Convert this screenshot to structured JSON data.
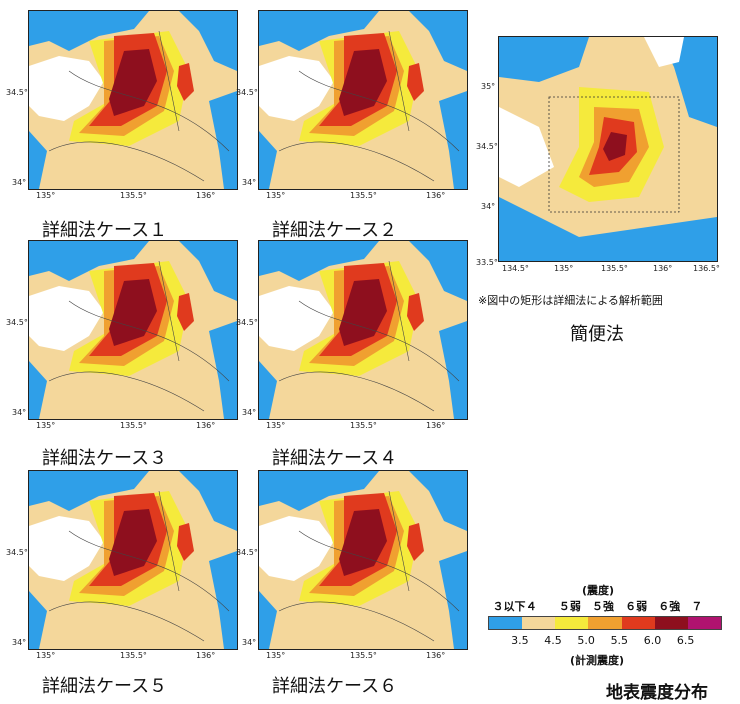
{
  "detail_maps": [
    {
      "caption": "詳細法ケース１",
      "xticks": [
        "135°",
        "135.5°",
        "136°"
      ],
      "yticks": [
        "34.5°",
        "34°"
      ]
    },
    {
      "caption": "詳細法ケース２",
      "xticks": [
        "135°",
        "135.5°",
        "136°"
      ],
      "yticks": [
        "34.5°",
        "34°"
      ]
    },
    {
      "caption": "詳細法ケース３",
      "xticks": [
        "135°",
        "135.5°",
        "136°"
      ],
      "yticks": [
        "34.5°",
        "34°"
      ]
    },
    {
      "caption": "詳細法ケース４",
      "xticks": [
        "135°",
        "135.5°",
        "136°"
      ],
      "yticks": [
        "34.5°",
        "34°"
      ]
    },
    {
      "caption": "詳細法ケース５",
      "xticks": [
        "135°",
        "135.5°",
        "136°"
      ],
      "yticks": [
        "34.5°",
        "34°"
      ]
    },
    {
      "caption": "詳細法ケース６",
      "xticks": [
        "135°",
        "135.5°",
        "136°"
      ],
      "yticks": [
        "34.5°",
        "34°"
      ]
    }
  ],
  "simple_map": {
    "caption": "簡便法",
    "note": "※図中の矩形は詳細法による解析範囲",
    "xticks": [
      "134.5°",
      "135°",
      "135.5°",
      "136°",
      "136.5°"
    ],
    "yticks": [
      "35°",
      "34.5°",
      "34°",
      "33.5°"
    ]
  },
  "legend": {
    "title_top": "(震度)",
    "title_bottom": "(計測震度)",
    "intensity_labels": [
      "３以下",
      "４",
      "５弱",
      "５強",
      "６弱",
      "６強",
      "７"
    ],
    "instrument_values": [
      "3.5",
      "4.5",
      "5.0",
      "5.5",
      "6.0",
      "6.5"
    ],
    "colors": [
      "#2f9fe8",
      "#f4d79b",
      "#f5ea3c",
      "#f0a030",
      "#e03a1e",
      "#8e0f1e",
      "#b0136f"
    ]
  },
  "figure_title": "地表震度分布"
}
